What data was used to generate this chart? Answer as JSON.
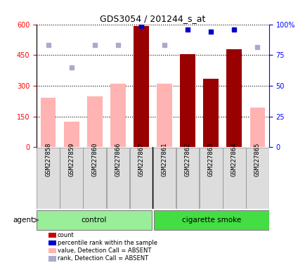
{
  "title": "GDS3054 / 201244_s_at",
  "samples": [
    "GSM227858",
    "GSM227859",
    "GSM227860",
    "GSM227866",
    "GSM227867",
    "GSM227861",
    "GSM227862",
    "GSM227863",
    "GSM227864",
    "GSM227865"
  ],
  "groups": [
    "control",
    "control",
    "control",
    "control",
    "control",
    "cigarette smoke",
    "cigarette smoke",
    "cigarette smoke",
    "cigarette smoke",
    "cigarette smoke"
  ],
  "count_values": [
    null,
    null,
    null,
    null,
    590,
    null,
    455,
    335,
    480,
    null
  ],
  "value_absent": [
    240,
    125,
    250,
    310,
    null,
    310,
    null,
    null,
    null,
    195
  ],
  "rank_absent_left": [
    500,
    390,
    500,
    500,
    null,
    500,
    null,
    null,
    null,
    490
  ],
  "rank_present_left": [
    null,
    null,
    null,
    null,
    590,
    null,
    575,
    565,
    575,
    null
  ],
  "ylim_left": [
    0,
    600
  ],
  "ylim_right": [
    0,
    100
  ],
  "yticks_left": [
    0,
    150,
    300,
    450,
    600
  ],
  "yticks_right": [
    0,
    25,
    50,
    75,
    100
  ],
  "bar_color_dark": "#990000",
  "bar_color_light": "#ffb3b3",
  "dot_color_dark": "#0000cc",
  "dot_color_light": "#aaaacc",
  "agent_label": "agent",
  "group_labels": [
    "control",
    "cigarette smoke"
  ],
  "group_colors": [
    "#99ee99",
    "#44dd44"
  ],
  "legend_items": [
    {
      "color": "#cc0000",
      "label": "count"
    },
    {
      "color": "#0000cc",
      "label": "percentile rank within the sample"
    },
    {
      "color": "#ffb3b3",
      "label": "value, Detection Call = ABSENT"
    },
    {
      "color": "#aaaacc",
      "label": "rank, Detection Call = ABSENT"
    }
  ]
}
